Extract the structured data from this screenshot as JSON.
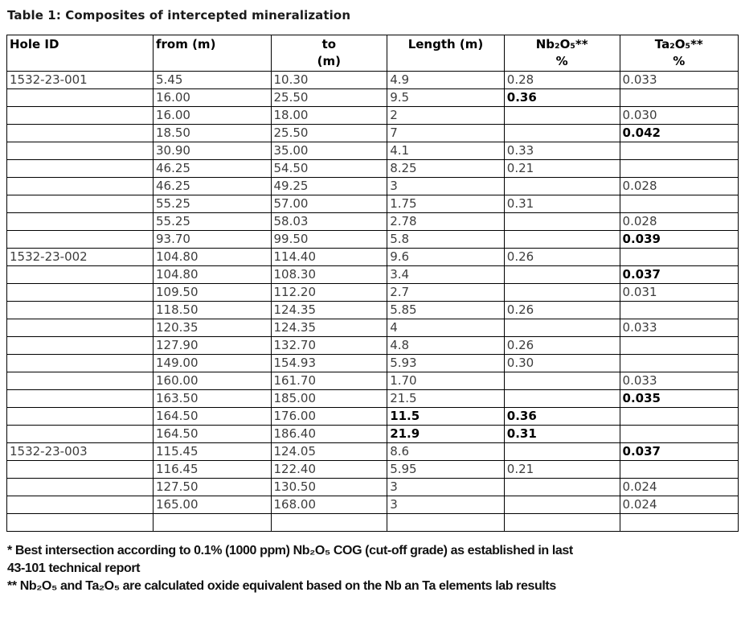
{
  "title": "Table 1: Composites of intercepted mineralization",
  "table": {
    "columns": [
      {
        "id": "hole-id",
        "lines": [
          "Hole ID"
        ],
        "align": "left"
      },
      {
        "id": "from-m",
        "lines": [
          "from (m)"
        ],
        "align": "left"
      },
      {
        "id": "to-m",
        "lines": [
          "to",
          "(m)"
        ],
        "align": "center"
      },
      {
        "id": "length-m",
        "lines": [
          "Length (m)"
        ],
        "align": "center"
      },
      {
        "id": "nb2o5-pct",
        "lines": [
          "Nb₂O₅**",
          "%"
        ],
        "align": "center"
      },
      {
        "id": "ta2o5-pct",
        "lines": [
          "Ta₂O₅**",
          "%"
        ],
        "align": "center"
      }
    ],
    "rows": [
      [
        "1532-23-001",
        "5.45",
        "10.30",
        "4.9",
        "0.28",
        "0.033"
      ],
      [
        "",
        "16.00",
        "25.50",
        "9.5",
        {
          "text": "0.36",
          "bold": true
        },
        ""
      ],
      [
        "",
        "16.00",
        "18.00",
        "2",
        "",
        "0.030"
      ],
      [
        "",
        "18.50",
        "25.50",
        "7",
        "",
        {
          "text": "0.042",
          "bold": true
        }
      ],
      [
        "",
        "30.90",
        "35.00",
        "4.1",
        "0.33",
        ""
      ],
      [
        "",
        "46.25",
        "54.50",
        "8.25",
        "0.21",
        ""
      ],
      [
        "",
        "46.25",
        "49.25",
        "3",
        "",
        "0.028"
      ],
      [
        "",
        "55.25",
        "57.00",
        "1.75",
        "0.31",
        ""
      ],
      [
        "",
        "55.25",
        "58.03",
        "2.78",
        "",
        "0.028"
      ],
      [
        "",
        "93.70",
        "99.50",
        "5.8",
        "",
        {
          "text": "0.039",
          "bold": true
        }
      ],
      [
        "1532-23-002",
        "104.80",
        "114.40",
        "9.6",
        "0.26",
        ""
      ],
      [
        "",
        "104.80",
        "108.30",
        "3.4",
        "",
        {
          "text": "0.037",
          "bold": true
        }
      ],
      [
        "",
        "109.50",
        "112.20",
        "2.7",
        "",
        "0.031"
      ],
      [
        "",
        "118.50",
        "124.35",
        "5.85",
        "0.26",
        ""
      ],
      [
        "",
        "120.35",
        "124.35",
        "4",
        "",
        "0.033"
      ],
      [
        "",
        "127.90",
        "132.70",
        "4.8",
        "0.26",
        ""
      ],
      [
        "",
        "149.00",
        "154.93",
        "5.93",
        "0.30",
        ""
      ],
      [
        "",
        "160.00",
        "161.70",
        "1.70",
        "",
        "0.033"
      ],
      [
        "",
        "163.50",
        "185.00",
        "21.5",
        "",
        {
          "text": "0.035",
          "bold": true
        }
      ],
      [
        "",
        "164.50",
        "176.00",
        {
          "text": "11.5",
          "bold": true
        },
        {
          "text": "0.36",
          "bold": true
        },
        ""
      ],
      [
        "",
        "164.50",
        "186.40",
        {
          "text": "21.9",
          "bold": true
        },
        {
          "text": "0.31",
          "bold": true
        },
        ""
      ],
      [
        "1532-23-003",
        "115.45",
        "124.05",
        "8.6",
        "",
        {
          "text": "0.037",
          "bold": true
        }
      ],
      [
        "",
        "116.45",
        "122.40",
        "5.95",
        "0.21",
        ""
      ],
      [
        "",
        "127.50",
        "130.50",
        "3",
        "",
        "0.024"
      ],
      [
        "",
        "165.00",
        "168.00",
        "3",
        "",
        "0.024"
      ],
      [
        "",
        "",
        "",
        "",
        "",
        ""
      ]
    ]
  },
  "footnotes": {
    "lines": [
      "* Best intersection according to 0.1% (1000 ppm) Nb₂O₅ COG (cut-off grade) as established in last",
      "43-101 technical report",
      "** Nb₂O₅ and Ta₂O₅ are calculated oxide equivalent based on the Nb an Ta elements lab results"
    ]
  },
  "colors": {
    "border": "#000000",
    "text_regular": "#3d3d3d",
    "text_emphasis": "#000000",
    "background": "#ffffff"
  }
}
